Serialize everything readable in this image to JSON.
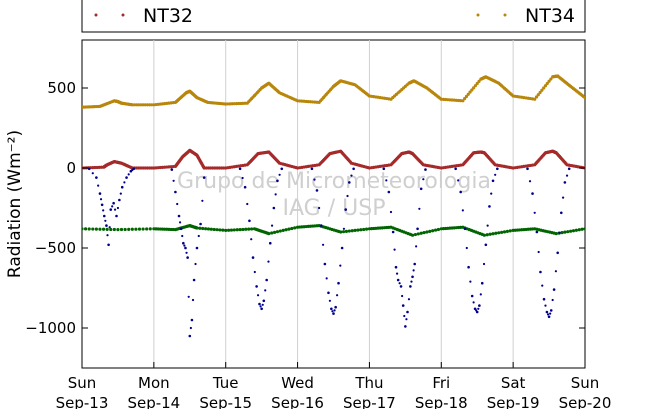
{
  "chart_data": {
    "type": "scatter",
    "title": "",
    "ylabel": "Radiation (Wm⁻²)",
    "xlabel": "",
    "ylim": [
      -1250,
      800
    ],
    "yticks": [
      -1000,
      -500,
      0,
      500
    ],
    "xlim": [
      0,
      7
    ],
    "grid": "vertical",
    "legend_position": "top",
    "watermark": [
      "Grupo de Micrometeorologia",
      "IAG / USP"
    ],
    "x_ticks": [
      {
        "x": 0,
        "day": "Sun",
        "date": "Sep-13"
      },
      {
        "x": 1,
        "day": "Mon",
        "date": "Sep-14"
      },
      {
        "x": 2,
        "day": "Tue",
        "date": "Sep-15"
      },
      {
        "x": 3,
        "day": "Wed",
        "date": "Sep-16"
      },
      {
        "x": 4,
        "day": "Thu",
        "date": "Sep-17"
      },
      {
        "x": 5,
        "day": "Fri",
        "date": "Sep-18"
      },
      {
        "x": 6,
        "day": "Sat",
        "date": "Sep-19"
      },
      {
        "x": 7,
        "day": "Sun",
        "date": "Sep-20"
      }
    ],
    "legend": [
      {
        "name": "NT32",
        "color": "#a52a2a"
      },
      {
        "name": "NT34",
        "color": "#b8860b"
      }
    ],
    "series": [
      {
        "id": "upper",
        "color": "#b8860b",
        "x": [
          0,
          0.25,
          0.45,
          0.5,
          0.55,
          0.7,
          1.0,
          1.3,
          1.45,
          1.5,
          1.6,
          1.75,
          2.0,
          2.3,
          2.5,
          2.6,
          2.75,
          3.0,
          3.3,
          3.5,
          3.6,
          3.8,
          4.0,
          4.3,
          4.55,
          4.62,
          4.8,
          5.0,
          5.3,
          5.55,
          5.62,
          5.8,
          6.0,
          6.3,
          6.55,
          6.62,
          6.8,
          7.0
        ],
        "y": [
          380,
          385,
          420,
          415,
          405,
          395,
          395,
          410,
          470,
          480,
          440,
          410,
          400,
          405,
          500,
          530,
          470,
          420,
          410,
          510,
          545,
          520,
          450,
          430,
          530,
          545,
          500,
          430,
          420,
          555,
          570,
          530,
          450,
          430,
          570,
          575,
          510,
          440
        ]
      },
      {
        "id": "middle",
        "color": "#a52a2a",
        "x": [
          0,
          0.3,
          0.35,
          0.45,
          0.55,
          0.7,
          1.0,
          1.3,
          1.4,
          1.5,
          1.6,
          1.7,
          2.0,
          2.3,
          2.45,
          2.6,
          2.75,
          3.0,
          3.3,
          3.45,
          3.6,
          3.75,
          4.0,
          4.3,
          4.45,
          4.55,
          4.6,
          4.75,
          5.0,
          5.3,
          5.45,
          5.55,
          5.6,
          5.75,
          6.0,
          6.3,
          6.45,
          6.55,
          6.6,
          6.75,
          7.0
        ],
        "y": [
          0,
          5,
          20,
          40,
          30,
          0,
          0,
          10,
          70,
          110,
          80,
          0,
          0,
          20,
          90,
          100,
          30,
          0,
          20,
          90,
          105,
          30,
          0,
          20,
          90,
          100,
          90,
          20,
          0,
          20,
          95,
          100,
          95,
          20,
          0,
          20,
          95,
          105,
          95,
          20,
          0
        ]
      },
      {
        "id": "lower",
        "color": "#006400",
        "x": [
          0,
          0.5,
          1.0,
          1.3,
          1.5,
          1.6,
          2.0,
          2.4,
          2.6,
          3.0,
          3.3,
          3.6,
          4.0,
          4.3,
          4.6,
          5.0,
          5.3,
          5.6,
          6.0,
          6.3,
          6.6,
          7.0
        ],
        "y": [
          -380,
          -385,
          -380,
          -385,
          -360,
          -375,
          -390,
          -380,
          -410,
          -370,
          -360,
          -400,
          -380,
          -370,
          -420,
          -380,
          -370,
          -420,
          -390,
          -380,
          -410,
          -380
        ]
      },
      {
        "id": "negative",
        "color": "#00008b",
        "x": [
          0.1,
          0.2,
          0.25,
          0.28,
          0.31,
          0.34,
          0.37,
          0.4,
          0.44,
          0.48,
          0.52,
          0.56,
          0.62,
          0.68,
          0.72,
          1.25,
          1.3,
          1.35,
          1.38,
          1.41,
          1.44,
          1.47,
          1.5,
          1.53,
          1.56,
          1.6,
          1.65,
          1.7,
          2.2,
          2.27,
          2.33,
          2.38,
          2.43,
          2.47,
          2.5,
          2.53,
          2.57,
          2.62,
          2.67,
          2.72,
          2.78,
          3.2,
          3.27,
          3.33,
          3.38,
          3.43,
          3.47,
          3.5,
          3.53,
          3.57,
          3.62,
          3.67,
          3.72,
          3.78,
          4.2,
          4.27,
          4.33,
          4.37,
          4.4,
          4.44,
          4.47,
          4.5,
          4.53,
          4.57,
          4.6,
          4.63,
          4.67,
          4.72,
          4.78,
          5.2,
          5.27,
          5.33,
          5.38,
          5.43,
          5.47,
          5.5,
          5.53,
          5.57,
          5.62,
          5.67,
          5.72,
          5.78,
          6.2,
          6.27,
          6.33,
          6.38,
          6.43,
          6.47,
          6.5,
          6.53,
          6.57,
          6.62,
          6.67,
          6.72,
          6.78
        ],
        "y": [
          -5,
          -60,
          -160,
          -230,
          -300,
          -360,
          -480,
          -260,
          -220,
          -300,
          -200,
          -120,
          -60,
          -20,
          -5,
          -10,
          -150,
          -300,
          -380,
          -470,
          -500,
          -560,
          -1050,
          -950,
          -700,
          -500,
          -350,
          -60,
          -5,
          -120,
          -330,
          -560,
          -740,
          -850,
          -880,
          -830,
          -700,
          -470,
          -250,
          -80,
          -5,
          -5,
          -140,
          -360,
          -600,
          -780,
          -880,
          -910,
          -870,
          -720,
          -500,
          -260,
          -90,
          -5,
          -5,
          -150,
          -400,
          -620,
          -700,
          -740,
          -860,
          -990,
          -900,
          -740,
          -680,
          -600,
          -380,
          -130,
          -10,
          -5,
          -150,
          -380,
          -620,
          -800,
          -880,
          -900,
          -860,
          -720,
          -480,
          -240,
          -80,
          -5,
          -5,
          -160,
          -400,
          -650,
          -820,
          -900,
          -930,
          -890,
          -760,
          -530,
          -280,
          -90,
          -5
        ]
      }
    ]
  }
}
